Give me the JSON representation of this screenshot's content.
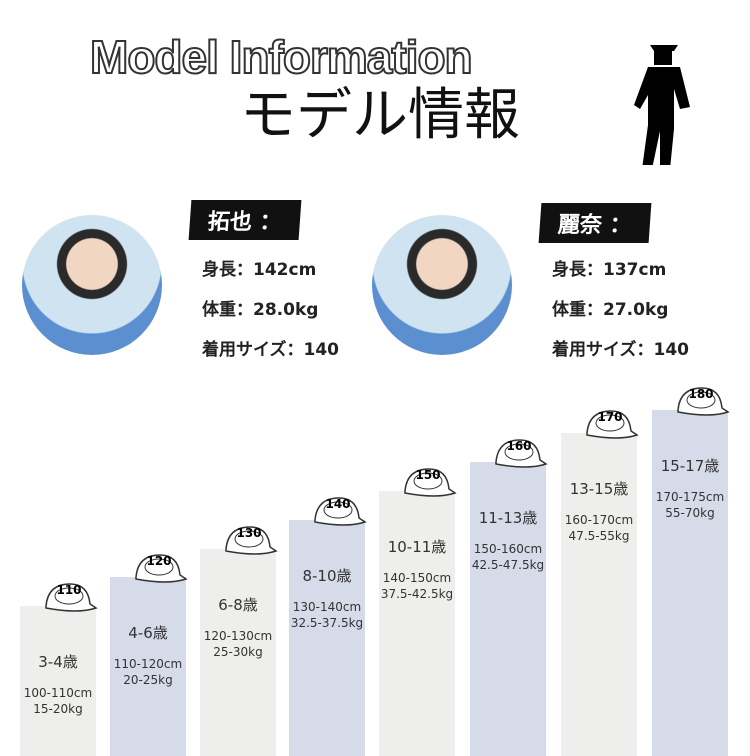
{
  "header": {
    "title_en": "Model Information",
    "title_ja": "モデル情報"
  },
  "models": [
    {
      "name": "拓也 ：",
      "lines": [
        "身長：142cm",
        "体重：28.0kg",
        "着用サイズ：140"
      ]
    },
    {
      "name": "麗奈 ：",
      "lines": [
        "身長：137cm",
        "体重：27.0kg",
        "着用サイズ：140"
      ]
    }
  ],
  "sizes": [
    {
      "cap": "110",
      "age": "3-4歳",
      "height": "100-110cm",
      "weight": "15-20kg"
    },
    {
      "cap": "120",
      "age": "4-6歳",
      "height": "110-120cm",
      "weight": "20-25kg"
    },
    {
      "cap": "130",
      "age": "6-8歳",
      "height": "120-130cm",
      "weight": "25-30kg"
    },
    {
      "cap": "140",
      "age": "8-10歳",
      "height": "130-140cm",
      "weight": "32.5-37.5kg"
    },
    {
      "cap": "150",
      "age": "10-11歳",
      "height": "140-150cm",
      "weight": "37.5-42.5kg"
    },
    {
      "cap": "160",
      "age": "11-13歳",
      "height": "150-160cm",
      "weight": "42.5-47.5kg"
    },
    {
      "cap": "170",
      "age": "13-15歳",
      "height": "160-170cm",
      "weight": "47.5-55kg"
    },
    {
      "cap": "180",
      "age": "15-17歳",
      "height": "170-175cm",
      "weight": "55-70kg"
    }
  ]
}
